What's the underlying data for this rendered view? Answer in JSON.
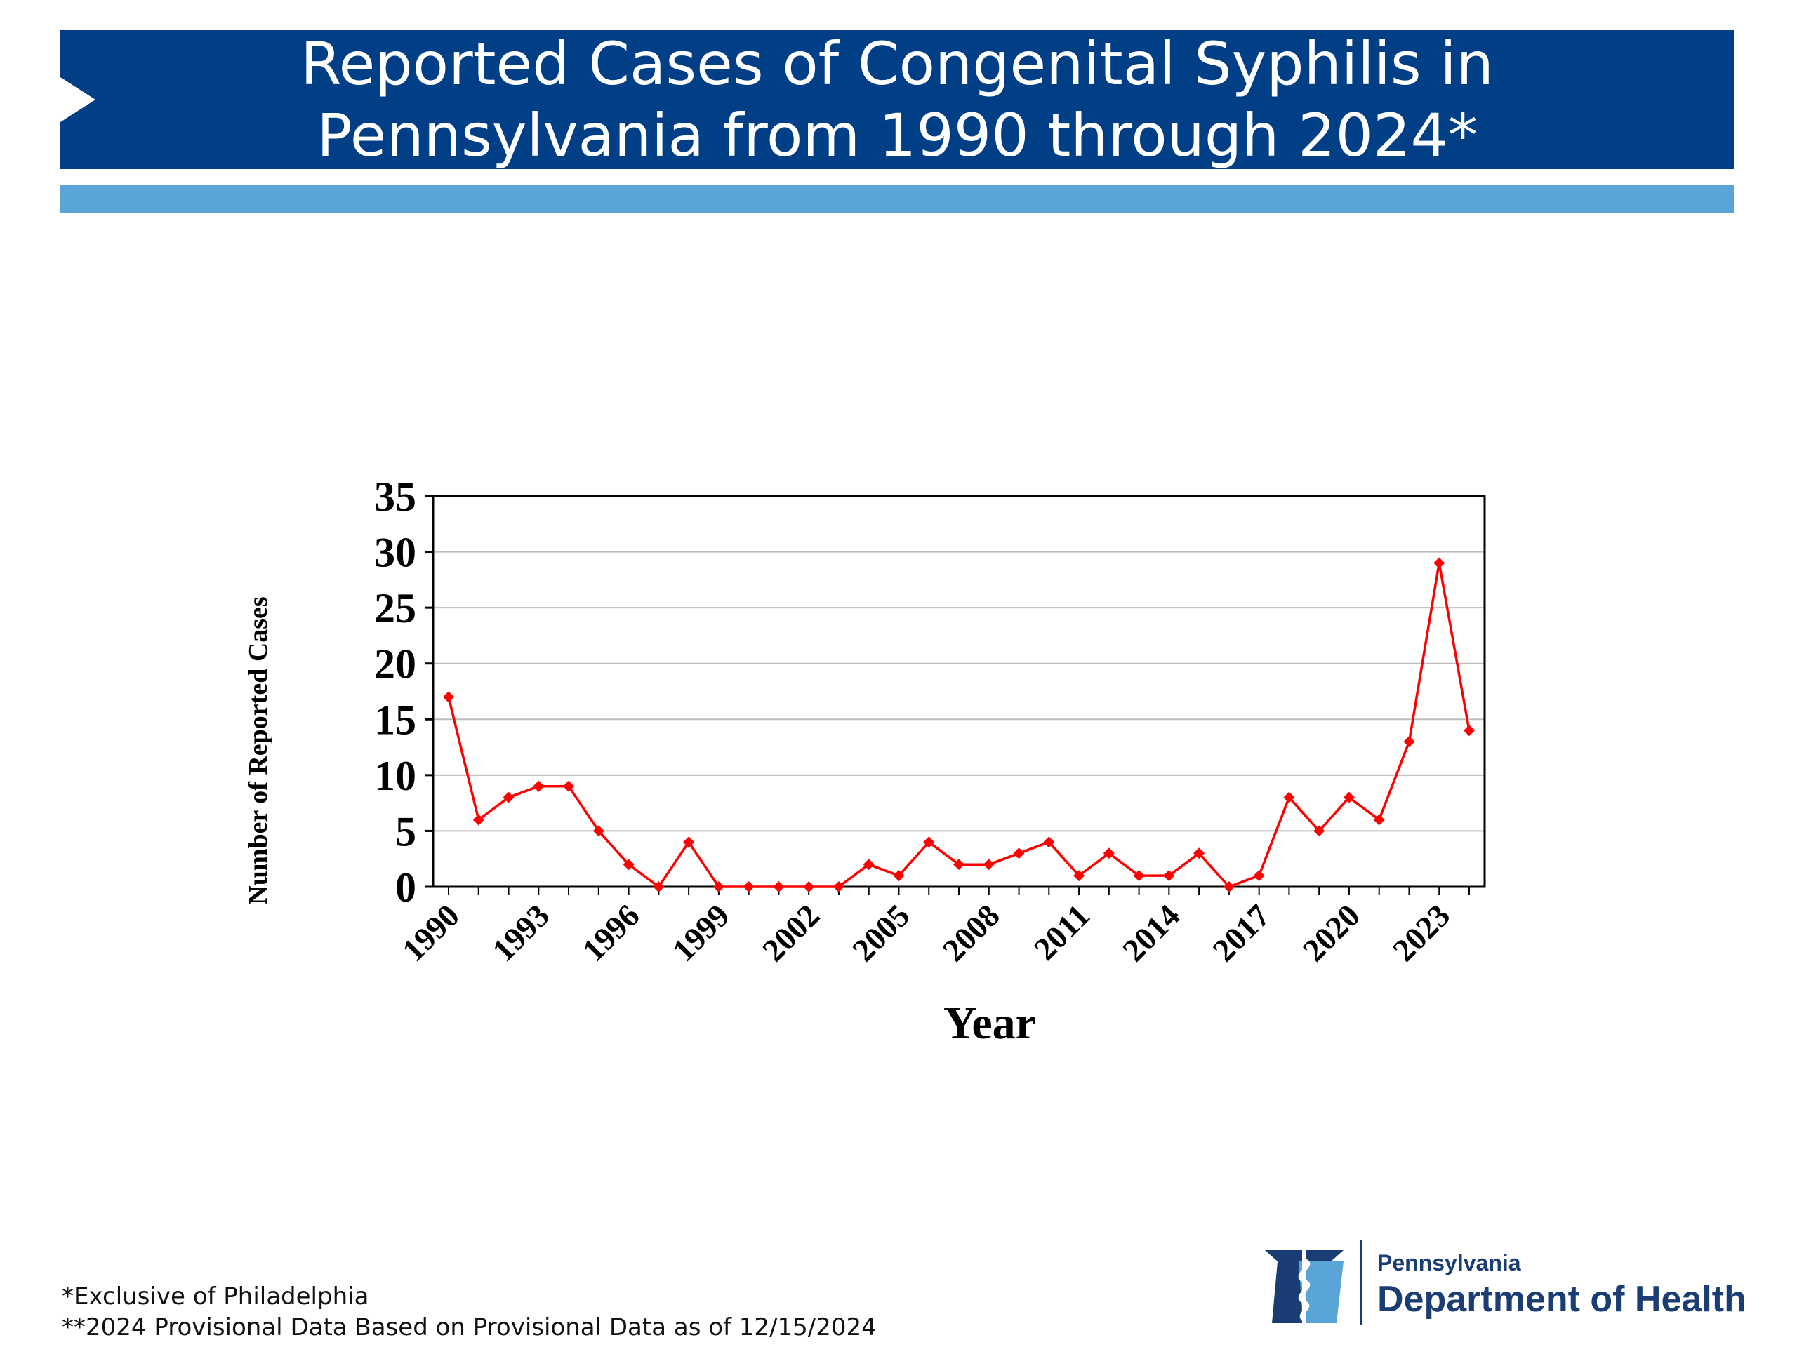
{
  "header": {
    "title_line1": "Reported Cases of Congenital Syphilis in",
    "title_line2": "Pennsylvania from 1990 through 2024*",
    "banner_color": "#003f86",
    "accent_color": "#5aa5d8"
  },
  "chart_data": {
    "type": "line",
    "title": "",
    "xlabel": "Year",
    "ylabel": "Number of Reported Cases",
    "x": [
      1990,
      1991,
      1992,
      1993,
      1994,
      1995,
      1996,
      1997,
      1998,
      1999,
      2000,
      2001,
      2002,
      2003,
      2004,
      2005,
      2006,
      2007,
      2008,
      2009,
      2010,
      2011,
      2012,
      2013,
      2014,
      2015,
      2016,
      2017,
      2018,
      2019,
      2020,
      2021,
      2022,
      2023,
      2024
    ],
    "series": [
      {
        "values": [
          17,
          6,
          8,
          9,
          9,
          5,
          2,
          0,
          4,
          0,
          0,
          0,
          0,
          0,
          2,
          1,
          4,
          2,
          2,
          3,
          4,
          1,
          3,
          1,
          1,
          3,
          0,
          1,
          8,
          5,
          8,
          6,
          13,
          29,
          14
        ],
        "color": "#ff0000",
        "marker": "diamond"
      }
    ],
    "ylim": [
      0,
      35
    ],
    "yticks": [
      "0",
      "5",
      "10",
      "15",
      "20",
      "25",
      "30",
      "35"
    ],
    "xticks": [
      "1990",
      "1993",
      "1996",
      "1999",
      "2002",
      "2005",
      "2008",
      "2011",
      "2014",
      "2017",
      "2020",
      "2023"
    ],
    "grid": true
  },
  "footnotes": {
    "line1": "*Exclusive of Philadelphia",
    "line2": "**2024 Provisional Data Based on Provisional Data as of 12/15/2024"
  },
  "logo": {
    "org_small": "Pennsylvania",
    "org_big": "Department of Health",
    "icon": "keystone-caduceus-icon"
  }
}
